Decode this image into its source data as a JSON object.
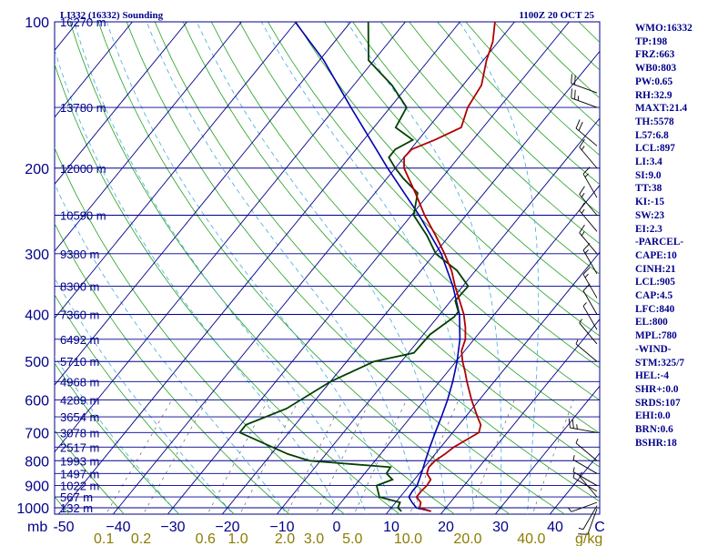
{
  "header": {
    "left_title": "LI332 (16332) Sounding",
    "right_title": "1100Z 20 OCT 25"
  },
  "colors": {
    "frame": "#00008b",
    "isobar": "#00008b",
    "isotherm": "#00008b",
    "dry_adiabat": "#22a022",
    "moist_adiabat": "#44aadd",
    "mixing_ratio": "#666666",
    "temperature": "#b00000",
    "dewpoint": "#004000",
    "parcel": "#0000b0",
    "text": "#00008b",
    "mixing_ratio_labels": "#8b7d00"
  },
  "chart_data": {
    "type": "skew-t",
    "axis_unit_label": "mb",
    "mixing_ratio_unit": "g/kg",
    "temperature_ticks": [
      -50,
      -40,
      -30,
      -20,
      -10,
      0,
      10,
      20,
      30,
      40
    ],
    "temperature_tick_labels": [
      "-50",
      "−40",
      "−30",
      "−20",
      "−10",
      "0",
      "10",
      "20",
      "30",
      "40"
    ],
    "last_tick_label": "C",
    "pressure_ticks": [
      100,
      200,
      300,
      400,
      500,
      600,
      700,
      800,
      900,
      1000
    ],
    "pressure_range": [
      100,
      1050
    ],
    "height_labels": [
      {
        "p": 100,
        "label": "16270 m"
      },
      {
        "p": 150,
        "label": "13780 m"
      },
      {
        "p": 200,
        "label": "12000 m"
      },
      {
        "p": 250,
        "label": "10590 m"
      },
      {
        "p": 300,
        "label": "9380 m"
      },
      {
        "p": 350,
        "label": "8300 m"
      },
      {
        "p": 400,
        "label": "7360 m"
      },
      {
        "p": 450,
        "label": "6492 m"
      },
      {
        "p": 500,
        "label": "5710 m"
      },
      {
        "p": 550,
        "label": "4968 m"
      },
      {
        "p": 600,
        "label": "4289 m"
      },
      {
        "p": 650,
        "label": "3654 m"
      },
      {
        "p": 700,
        "label": "3078 m"
      },
      {
        "p": 750,
        "label": "2517 m"
      },
      {
        "p": 800,
        "label": "1993 m"
      },
      {
        "p": 850,
        "label": "1497 m"
      },
      {
        "p": 900,
        "label": "1022 m"
      },
      {
        "p": 950,
        "label": "567 m"
      },
      {
        "p": 1000,
        "label": "132 m"
      }
    ],
    "mixing_ratio_labels": [
      "0.1",
      "0.2",
      "0.6",
      "1.0",
      "2.0",
      "3.0",
      "5.0",
      "10.0",
      "20.0",
      "40.0"
    ],
    "temperature_profile": [
      {
        "p": 1017,
        "t": 17.8
      },
      {
        "p": 1000,
        "t": 15.2
      },
      {
        "p": 975,
        "t": 14.6
      },
      {
        "p": 950,
        "t": 13.0
      },
      {
        "p": 925,
        "t": 13.0
      },
      {
        "p": 900,
        "t": 13.2
      },
      {
        "p": 875,
        "t": 13.0
      },
      {
        "p": 850,
        "t": 11.4
      },
      {
        "p": 825,
        "t": 10.8
      },
      {
        "p": 800,
        "t": 11.0
      },
      {
        "p": 775,
        "t": 11.8
      },
      {
        "p": 750,
        "t": 12.4
      },
      {
        "p": 725,
        "t": 13.6
      },
      {
        "p": 700,
        "t": 14.8
      },
      {
        "p": 675,
        "t": 14.0
      },
      {
        "p": 650,
        "t": 12.2
      },
      {
        "p": 600,
        "t": 8.6
      },
      {
        "p": 550,
        "t": 5.0
      },
      {
        "p": 525,
        "t": 3.2
      },
      {
        "p": 500,
        "t": 1.2
      },
      {
        "p": 475,
        "t": -0.6
      },
      {
        "p": 450,
        "t": -1.6
      },
      {
        "p": 425,
        "t": -3.4
      },
      {
        "p": 400,
        "t": -5.6
      },
      {
        "p": 375,
        "t": -8.4
      },
      {
        "p": 350,
        "t": -11.4
      },
      {
        "p": 325,
        "t": -14.4
      },
      {
        "p": 300,
        "t": -18.2
      },
      {
        "p": 275,
        "t": -22.6
      },
      {
        "p": 250,
        "t": -27.6
      },
      {
        "p": 225,
        "t": -32.6
      },
      {
        "p": 200,
        "t": -38.4
      },
      {
        "p": 190,
        "t": -40.0
      },
      {
        "p": 183,
        "t": -39.8
      },
      {
        "p": 175,
        "t": -37.0
      },
      {
        "p": 165,
        "t": -34.0
      },
      {
        "p": 150,
        "t": -35.8
      },
      {
        "p": 135,
        "t": -36.6
      },
      {
        "p": 120,
        "t": -39.4
      },
      {
        "p": 110,
        "t": -41.0
      },
      {
        "p": 100,
        "t": -43.6
      }
    ],
    "dewpoint_profile": [
      {
        "p": 1017,
        "t": 12.4
      },
      {
        "p": 1000,
        "t": 11.2
      },
      {
        "p": 975,
        "t": 10.8
      },
      {
        "p": 950,
        "t": 6.2
      },
      {
        "p": 900,
        "t": 4.0
      },
      {
        "p": 875,
        "t": 6.0
      },
      {
        "p": 850,
        "t": 4.0
      },
      {
        "p": 825,
        "t": 3.8
      },
      {
        "p": 800,
        "t": -12.0
      },
      {
        "p": 775,
        "t": -17.0
      },
      {
        "p": 700,
        "t": -29.0
      },
      {
        "p": 675,
        "t": -29.0
      },
      {
        "p": 625,
        "t": -24.0
      },
      {
        "p": 550,
        "t": -20.0
      },
      {
        "p": 500,
        "t": -15.0
      },
      {
        "p": 480,
        "t": -9.0
      },
      {
        "p": 440,
        "t": -8.8
      },
      {
        "p": 405,
        "t": -7.0
      },
      {
        "p": 395,
        "t": -7.0
      },
      {
        "p": 375,
        "t": -9.2
      },
      {
        "p": 350,
        "t": -9.0
      },
      {
        "p": 325,
        "t": -13.4
      },
      {
        "p": 300,
        "t": -19.8
      },
      {
        "p": 275,
        "t": -24.2
      },
      {
        "p": 250,
        "t": -29.6
      },
      {
        "p": 225,
        "t": -32.2
      },
      {
        "p": 210,
        "t": -37.0
      },
      {
        "p": 200,
        "t": -40.0
      },
      {
        "p": 190,
        "t": -42.8
      },
      {
        "p": 183,
        "t": -42.8
      },
      {
        "p": 175,
        "t": -41.0
      },
      {
        "p": 165,
        "t": -46.0
      },
      {
        "p": 150,
        "t": -47.0
      },
      {
        "p": 135,
        "t": -53.0
      },
      {
        "p": 120,
        "t": -61.0
      },
      {
        "p": 100,
        "t": -66.8
      }
    ],
    "parcel_profile": [
      {
        "p": 1017,
        "t": 17.8
      },
      {
        "p": 1000,
        "t": 14.6
      },
      {
        "p": 975,
        "t": 13.0
      },
      {
        "p": 950,
        "t": 11.6
      },
      {
        "p": 925,
        "t": 11.4
      },
      {
        "p": 900,
        "t": 11.4
      },
      {
        "p": 850,
        "t": 10.4
      },
      {
        "p": 800,
        "t": 9.2
      },
      {
        "p": 750,
        "t": 8.0
      },
      {
        "p": 700,
        "t": 6.8
      },
      {
        "p": 650,
        "t": 5.6
      },
      {
        "p": 600,
        "t": 4.2
      },
      {
        "p": 550,
        "t": 2.4
      },
      {
        "p": 500,
        "t": 0.2
      },
      {
        "p": 450,
        "t": -2.6
      },
      {
        "p": 400,
        "t": -6.4
      },
      {
        "p": 350,
        "t": -11.8
      },
      {
        "p": 300,
        "t": -18.8
      },
      {
        "p": 250,
        "t": -28.6
      },
      {
        "p": 200,
        "t": -41.4
      },
      {
        "p": 150,
        "t": -57.2
      },
      {
        "p": 120,
        "t": -69.2
      },
      {
        "p": 100,
        "t": -80.2
      }
    ],
    "wind_barbs": [
      {
        "p": 1005,
        "dir": 200,
        "spd": 10
      },
      {
        "p": 990,
        "dir": 210,
        "spd": 5
      },
      {
        "p": 975,
        "dir": 250,
        "spd": 5
      },
      {
        "p": 950,
        "dir": 320,
        "spd": 5
      },
      {
        "p": 925,
        "dir": 300,
        "spd": 5
      },
      {
        "p": 900,
        "dir": 300,
        "spd": 5
      },
      {
        "p": 850,
        "dir": 300,
        "spd": 5
      },
      {
        "p": 800,
        "dir": 310,
        "spd": 5
      },
      {
        "p": 700,
        "dir": 280,
        "spd": 25
      },
      {
        "p": 500,
        "dir": 310,
        "spd": 5
      },
      {
        "p": 460,
        "dir": 320,
        "spd": 5
      },
      {
        "p": 430,
        "dir": 330,
        "spd": 5
      },
      {
        "p": 400,
        "dir": 330,
        "spd": 10
      },
      {
        "p": 370,
        "dir": 330,
        "spd": 15
      },
      {
        "p": 330,
        "dir": 330,
        "spd": 15
      },
      {
        "p": 300,
        "dir": 320,
        "spd": 15
      },
      {
        "p": 270,
        "dir": 320,
        "spd": 15
      },
      {
        "p": 250,
        "dir": 320,
        "spd": 15
      },
      {
        "p": 230,
        "dir": 330,
        "spd": 15
      },
      {
        "p": 200,
        "dir": 320,
        "spd": 15
      },
      {
        "p": 180,
        "dir": 310,
        "spd": 20
      },
      {
        "p": 150,
        "dir": 290,
        "spd": 25
      },
      {
        "p": 140,
        "dir": 290,
        "spd": 20
      }
    ]
  },
  "indices": [
    "WMO:16332",
    "TP:198",
    "FRZ:663",
    "WB0:803",
    "PW:0.65",
    "RH:32.9",
    "MAXT:21.4",
    "TH:5578",
    "L57:6.8",
    "LCL:897",
    "LI:3.4",
    "SI:9.0",
    "TT:38",
    "KI:-15",
    "SW:23",
    "EI:2.3",
    "-PARCEL-",
    "CAPE:10",
    "CINH:21",
    "LCL:905",
    "CAP:4.5",
    "LFC:840",
    "EL:800",
    "MPL:780",
    "-WIND-",
    "STM:325/7",
    "HEL:-4",
    "SHR+:0.0",
    "SRDS:107",
    "EHI:0.0",
    "BRN:0.6",
    "BSHR:18"
  ]
}
